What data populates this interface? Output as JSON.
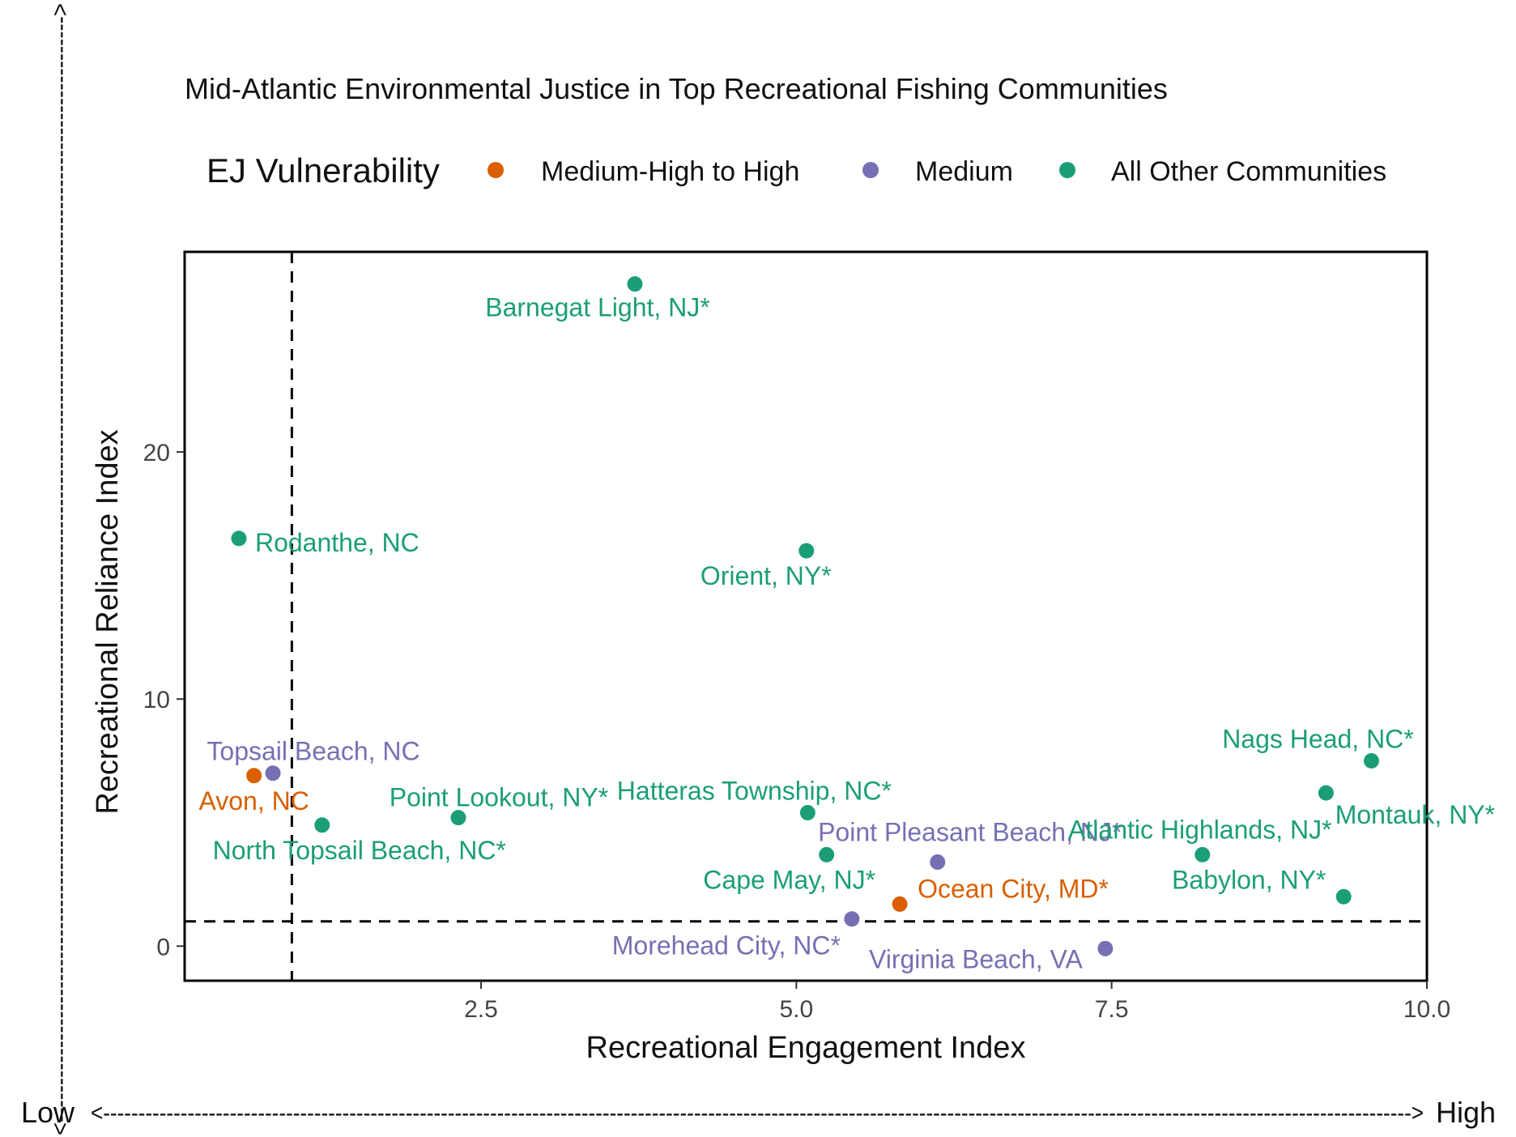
{
  "chart_data": {
    "type": "scatter",
    "title": "Mid-Atlantic Environmental Justice in Top Recreational Fishing Communities",
    "xlabel": "Recreational Engagement Index",
    "ylabel": "Recreational Reliance Index",
    "xlim": [
      0.15,
      10.0
    ],
    "ylim": [
      -1.4,
      28.1
    ],
    "xticks": [
      2.5,
      5.0,
      7.5,
      10.0
    ],
    "xtick_labels": [
      "2.5",
      "5.0",
      "7.5",
      "10.0"
    ],
    "yticks": [
      0,
      10,
      20
    ],
    "ytick_labels": [
      "0",
      "10",
      "20"
    ],
    "reference_lines": {
      "x": 1.0,
      "y": 1.0,
      "style": "dashed"
    },
    "legend": {
      "title": "EJ Vulnerability",
      "placement": "top",
      "entries": [
        {
          "name": "Medium-High to High",
          "color": "#d95f02"
        },
        {
          "name": "Medium",
          "color": "#7570b3"
        },
        {
          "name": "All Other Communities",
          "color": "#1b9e77"
        }
      ]
    },
    "grid": false,
    "series": [
      {
        "name": "Medium-High to High",
        "color": "#d95f02",
        "points": [
          {
            "label": "Avon, NC",
            "x": 0.7,
            "y": 6.9
          },
          {
            "label": "Ocean City, MD*",
            "x": 5.82,
            "y": 1.7
          }
        ]
      },
      {
        "name": "Medium",
        "color": "#7570b3",
        "points": [
          {
            "label": "Topsail Beach, NC",
            "x": 0.85,
            "y": 7.0
          },
          {
            "label": "Point Pleasant Beach, NJ*",
            "x": 6.12,
            "y": 3.4
          },
          {
            "label": "Morehead City, NC*",
            "x": 5.44,
            "y": 1.1
          },
          {
            "label": "Virginia Beach, VA",
            "x": 7.45,
            "y": -0.1
          }
        ]
      },
      {
        "name": "All Other Communities",
        "color": "#1b9e77",
        "points": [
          {
            "label": "Barnegat Light, NJ*",
            "x": 3.72,
            "y": 26.8
          },
          {
            "label": "Rodanthe, NC",
            "x": 0.58,
            "y": 16.5
          },
          {
            "label": "Orient, NY*",
            "x": 5.08,
            "y": 16.0
          },
          {
            "label": "North Topsail Beach, NC*",
            "x": 1.24,
            "y": 4.9
          },
          {
            "label": "Point Lookout, NY*",
            "x": 2.32,
            "y": 5.2
          },
          {
            "label": "Hatteras Township, NC*",
            "x": 5.09,
            "y": 5.4
          },
          {
            "label": "Cape May, NJ*",
            "x": 5.24,
            "y": 3.7
          },
          {
            "label": "Nags Head, NC*",
            "x": 9.56,
            "y": 7.5
          },
          {
            "label": "Montauk, NY*",
            "x": 9.2,
            "y": 6.2
          },
          {
            "label": "Atlantic Highlands, NJ*",
            "x": 8.22,
            "y": 3.7
          },
          {
            "label": "Babylon, NY*",
            "x": 9.34,
            "y": 2.0
          }
        ]
      }
    ]
  },
  "outer_axes": {
    "low_label": "Low",
    "high_label": "High",
    "x_arrow_text": "<------------------------------------------------------------------------------------------------------------------------------------------------------------------------------------------>",
    "y_arrow_text": "<----------------------------------------------------------------------------------------------------------------------------------------------------->"
  }
}
